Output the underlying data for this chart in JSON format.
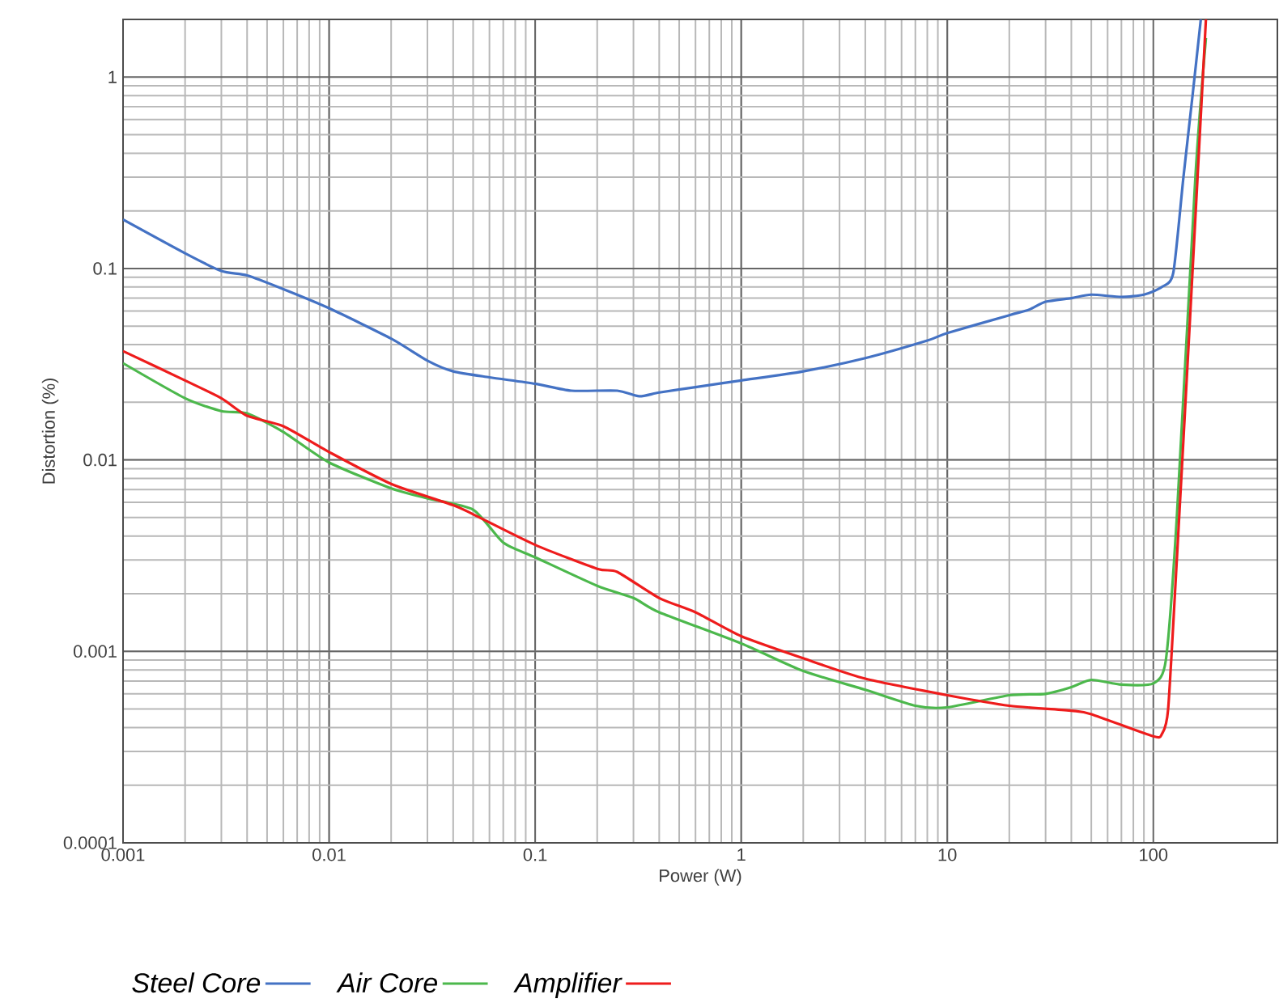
{
  "chart_data": {
    "type": "line",
    "xlabel": "Power (W)",
    "ylabel": "Distortion (%)",
    "log": "xy",
    "grid": true,
    "legend": "bottom",
    "line_style": "solid",
    "marker": "none",
    "xlim": [
      0.001,
      400
    ],
    "ylim": [
      0.0001,
      2
    ],
    "xticks": [
      0.001,
      0.01,
      0.1,
      1,
      10,
      100
    ],
    "yticks": [
      0.0001,
      0.001,
      0.01,
      0.1,
      1
    ],
    "series": [
      {
        "name": "Steel Core",
        "color": "#4472c4",
        "x": [
          0.001,
          0.002,
          0.003,
          0.004,
          0.006,
          0.01,
          0.02,
          0.03,
          0.04,
          0.06,
          0.1,
          0.15,
          0.25,
          0.32,
          0.4,
          0.6,
          1,
          2,
          4,
          8,
          10,
          20,
          25,
          30,
          40,
          50,
          70,
          90,
          110,
          125,
          140,
          155,
          170
        ],
        "values": [
          0.18,
          0.12,
          0.097,
          0.092,
          0.078,
          0.062,
          0.043,
          0.033,
          0.029,
          0.027,
          0.025,
          0.023,
          0.023,
          0.0215,
          0.0225,
          0.024,
          0.026,
          0.029,
          0.034,
          0.042,
          0.046,
          0.057,
          0.061,
          0.067,
          0.07,
          0.073,
          0.071,
          0.073,
          0.08,
          0.095,
          0.3,
          0.8,
          2.0
        ]
      },
      {
        "name": "Air Core",
        "color": "#4cb84c",
        "x": [
          0.001,
          0.002,
          0.003,
          0.004,
          0.006,
          0.01,
          0.02,
          0.03,
          0.05,
          0.07,
          0.1,
          0.2,
          0.3,
          0.4,
          1,
          2,
          4,
          7,
          10,
          20,
          30,
          40,
          50,
          70,
          100,
          115,
          130,
          160,
          180
        ],
        "values": [
          0.032,
          0.021,
          0.018,
          0.0175,
          0.014,
          0.0097,
          0.0071,
          0.0063,
          0.0055,
          0.0037,
          0.0031,
          0.0022,
          0.0019,
          0.0016,
          0.0011,
          0.00079,
          0.00063,
          0.00052,
          0.00051,
          0.00059,
          0.0006,
          0.00065,
          0.00071,
          0.00067,
          0.00068,
          0.0009,
          0.005,
          0.3,
          1.6
        ]
      },
      {
        "name": "Amplifier",
        "color": "#ee1c1c",
        "x": [
          0.001,
          0.002,
          0.003,
          0.004,
          0.006,
          0.01,
          0.02,
          0.04,
          0.05,
          0.1,
          0.2,
          0.25,
          0.4,
          0.6,
          1,
          2,
          4,
          10,
          20,
          40,
          50,
          100,
          110,
          118,
          130,
          150,
          180
        ],
        "values": [
          0.037,
          0.026,
          0.021,
          0.017,
          0.015,
          0.011,
          0.0075,
          0.0058,
          0.0052,
          0.0036,
          0.0027,
          0.0026,
          0.0019,
          0.0016,
          0.0012,
          0.00092,
          0.00072,
          0.00059,
          0.00052,
          0.00049,
          0.00047,
          0.00036,
          0.00037,
          0.0005,
          0.003,
          0.05,
          2.0
        ]
      }
    ]
  }
}
